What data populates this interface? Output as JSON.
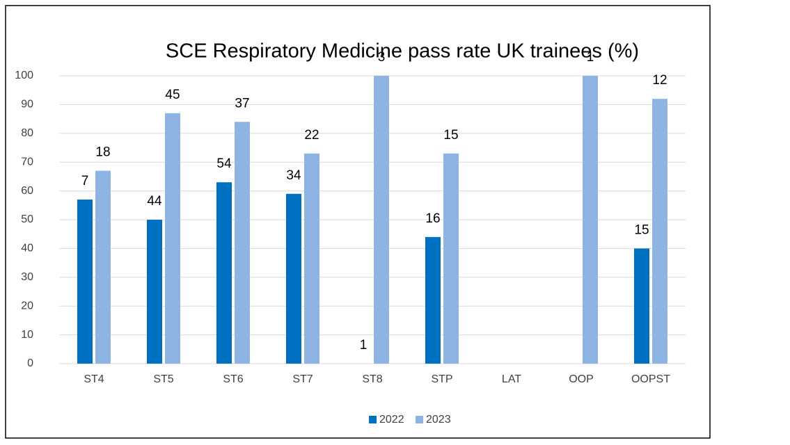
{
  "chart_data": {
    "type": "bar",
    "title": "SCE Respiratory Medicine pass rate UK trainees (%)",
    "categories": [
      "ST4",
      "ST5",
      "ST6",
      "ST7",
      "ST8",
      "STP",
      "LAT",
      "OOP",
      "OOPST"
    ],
    "series": [
      {
        "name": "2022",
        "color": "#0070c0",
        "values": [
          57,
          50,
          63,
          59,
          0,
          44,
          null,
          null,
          40
        ],
        "counts": [
          7,
          44,
          54,
          34,
          1,
          16,
          null,
          null,
          15
        ]
      },
      {
        "name": "2023",
        "color": "#8eb4e3",
        "values": [
          67,
          87,
          84,
          73,
          100,
          73,
          null,
          100,
          92
        ],
        "counts": [
          18,
          45,
          37,
          22,
          3,
          15,
          null,
          1,
          12
        ]
      }
    ],
    "ylim": [
      0,
      100
    ],
    "yticks": [
      0,
      10,
      20,
      30,
      40,
      50,
      60,
      70,
      80,
      90,
      100
    ],
    "grid": true,
    "legend": "bottom"
  }
}
